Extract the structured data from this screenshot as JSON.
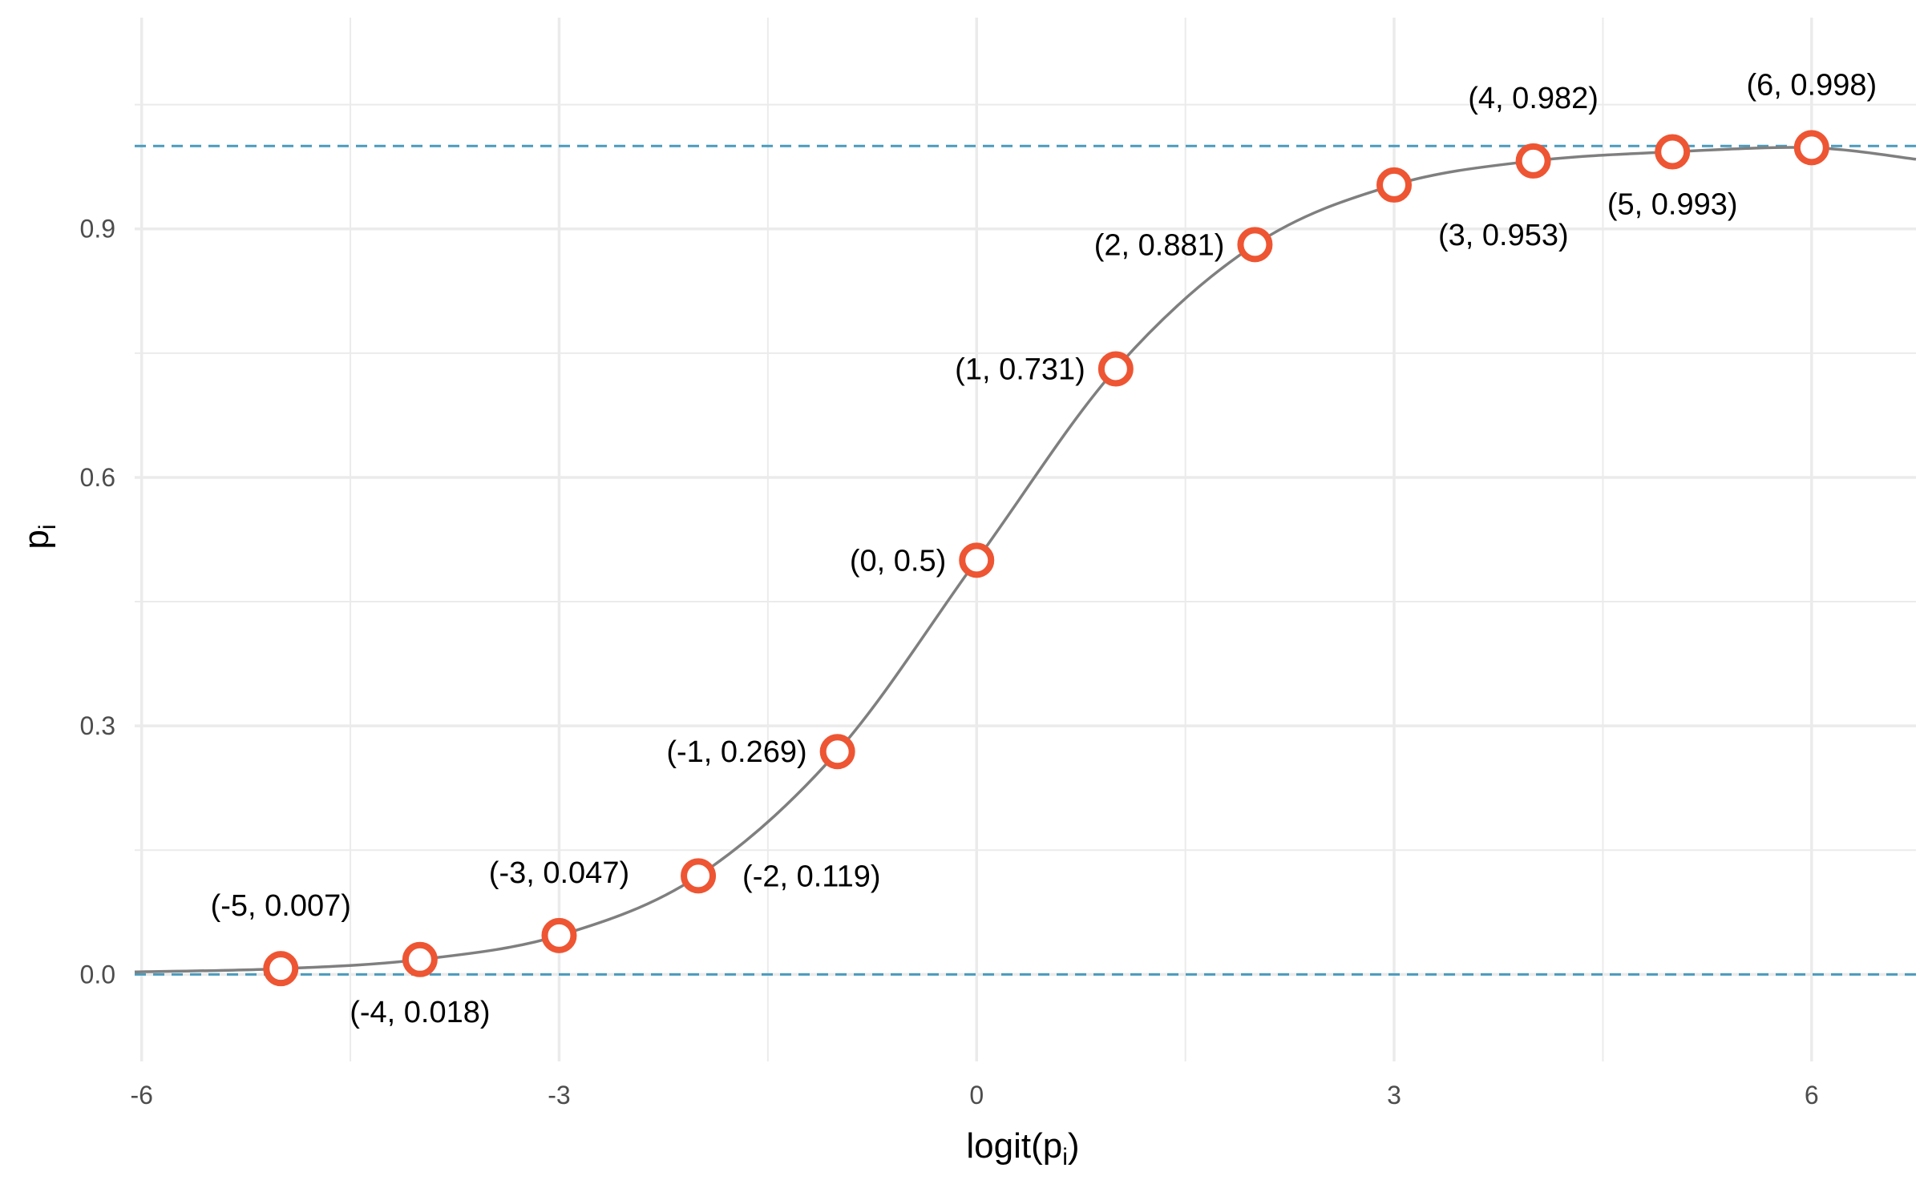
{
  "chart_data": {
    "type": "scatter",
    "title": "",
    "xlabel": "logit(p",
    "xlabel_sub": "i",
    "xlabel_close": ")",
    "ylabel": "p",
    "ylabel_sub": "i",
    "xlim": [
      -6.05,
      6.75
    ],
    "ylim": [
      -0.105,
      1.155
    ],
    "x_ticks": [
      -6,
      -3,
      0,
      3,
      6
    ],
    "x_tick_labels": [
      "-6",
      "-3",
      "0",
      "3",
      "6"
    ],
    "y_ticks": [
      0.0,
      0.3,
      0.6,
      0.9
    ],
    "y_tick_labels": [
      "0.0",
      "0.3",
      "0.6",
      "0.9"
    ],
    "x_minor_ticks": [
      -4.5,
      -1.5,
      1.5,
      4.5
    ],
    "y_minor_ticks": [
      0.15,
      0.45,
      0.75,
      1.05
    ],
    "grid": true,
    "reference_lines": [
      0,
      1
    ],
    "points": [
      {
        "x": -5,
        "y": 0.007,
        "label": "(-5, 0.007)",
        "pos": "above"
      },
      {
        "x": -4,
        "y": 0.018,
        "label": "(-4, 0.018)",
        "pos": "below"
      },
      {
        "x": -3,
        "y": 0.047,
        "label": "(-3, 0.047)",
        "pos": "above"
      },
      {
        "x": -2,
        "y": 0.119,
        "label": "(-2, 0.119)",
        "pos": "right"
      },
      {
        "x": -1,
        "y": 0.269,
        "label": "(-1, 0.269)",
        "pos": "left"
      },
      {
        "x": 0,
        "y": 0.5,
        "label": "(0, 0.5)",
        "pos": "left"
      },
      {
        "x": 1,
        "y": 0.731,
        "label": "(1, 0.731)",
        "pos": "left"
      },
      {
        "x": 2,
        "y": 0.881,
        "label": "(2, 0.881)",
        "pos": "left"
      },
      {
        "x": 3,
        "y": 0.953,
        "label": "(3, 0.953)",
        "pos": "below-right"
      },
      {
        "x": 4,
        "y": 0.982,
        "label": "(4, 0.982)",
        "pos": "above"
      },
      {
        "x": 5,
        "y": 0.993,
        "label": "(5, 0.993)",
        "pos": "below"
      },
      {
        "x": 6,
        "y": 0.998,
        "label": "(6, 0.998)",
        "pos": "above"
      }
    ],
    "colors": {
      "point": "#ee5533",
      "curve": "#7f7f7f",
      "reference": "#4a9bbd",
      "grid": "#ebebeb"
    }
  }
}
